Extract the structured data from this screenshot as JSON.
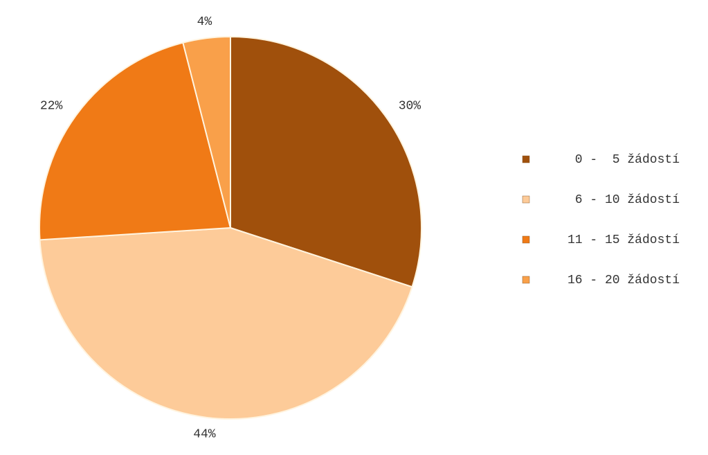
{
  "chart_data": {
    "type": "pie",
    "categories": [
      "0 -  5 žádostí",
      "6 - 10 žádostí",
      "11 - 15 žádostí",
      "16 - 20 žádostí"
    ],
    "values": [
      30,
      44,
      22,
      4
    ],
    "value_labels": [
      "30%",
      "44%",
      "22%",
      "4%"
    ],
    "colors": [
      "#a0500c",
      "#fdcb99",
      "#f07a16",
      "#f9a04a"
    ],
    "legend": "right"
  }
}
